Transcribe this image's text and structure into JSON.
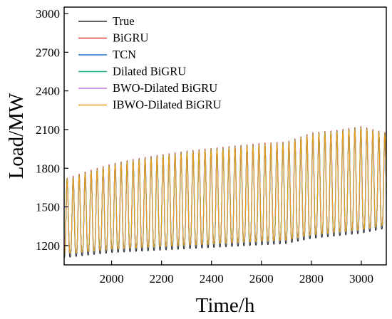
{
  "chart_data": {
    "type": "line",
    "xlabel": "Time/h",
    "ylabel": "Load/MW",
    "xlim": [
      1810,
      3100
    ],
    "ylim": [
      1050,
      3050
    ],
    "xticks": [
      2000,
      2200,
      2400,
      2600,
      2800,
      3000
    ],
    "xtick_labels": [
      "2000",
      "2200",
      "2400",
      "2600",
      "2800",
      "3000"
    ],
    "yticks": [
      1200,
      1500,
      1800,
      2100,
      2400,
      2700,
      3000
    ],
    "ytick_labels": [
      "1200",
      "1500",
      "1800",
      "2100",
      "2400",
      "2700",
      "3000"
    ],
    "grid": false,
    "legend_position": "top-left",
    "cycle_hours": 24,
    "x_start": 1810,
    "x_end": 3100,
    "daily_envelope": {
      "x": [
        1810,
        1900,
        2000,
        2100,
        2200,
        2300,
        2400,
        2500,
        2600,
        2700,
        2800,
        2900,
        3000,
        3100
      ],
      "peak": [
        1700,
        1760,
        1820,
        1860,
        1890,
        1920,
        1940,
        1960,
        1980,
        1990,
        2060,
        2080,
        2110,
        2060
      ],
      "trough": [
        1130,
        1150,
        1170,
        1180,
        1190,
        1200,
        1210,
        1220,
        1230,
        1240,
        1280,
        1300,
        1320,
        1360
      ]
    },
    "series": [
      {
        "name": "True",
        "color": "#2e2e2e",
        "peak_offset": 10,
        "trough_offset": -25,
        "shift": 0
      },
      {
        "name": "BiGRU",
        "color": "#ea3b3b",
        "peak_offset": 15,
        "trough_offset": 10,
        "shift": 0.3
      },
      {
        "name": "TCN",
        "color": "#1f6fc9",
        "peak_offset": -25,
        "trough_offset": -5,
        "shift": 0.4
      },
      {
        "name": "Dilated BiGRU",
        "color": "#19b07a",
        "peak_offset": 5,
        "trough_offset": 15,
        "shift": 0.2
      },
      {
        "name": "BWO-Dilated BiGRU",
        "color": "#c07be0",
        "peak_offset": -10,
        "trough_offset": 5,
        "shift": 0.1
      },
      {
        "name": "IBWO-Dilated BiGRU",
        "color": "#e8a21a",
        "peak_offset": 0,
        "trough_offset": 0,
        "shift": 0.05
      }
    ]
  }
}
